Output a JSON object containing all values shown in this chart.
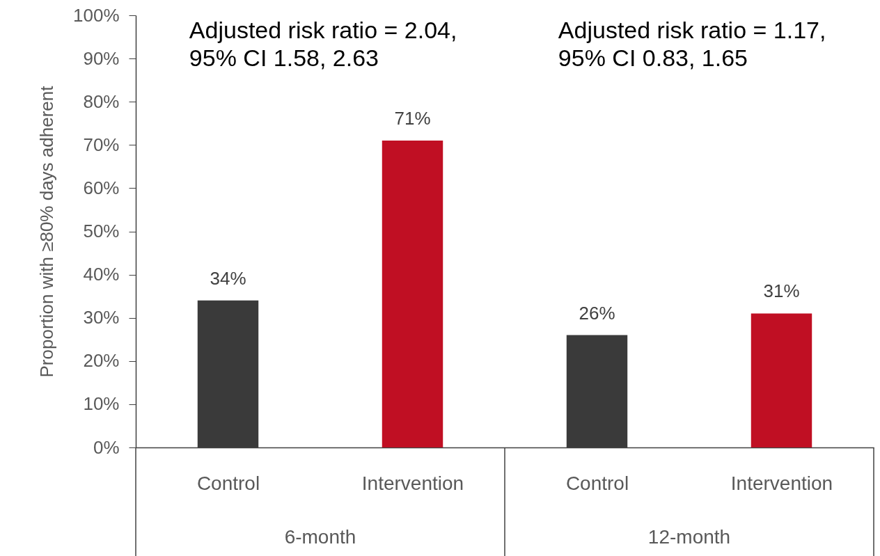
{
  "chart_data": {
    "type": "bar",
    "ylabel": "Proportion with ≥80% days adherent",
    "categories": [
      "Control",
      "Intervention",
      "Control",
      "Intervention"
    ],
    "values": [
      34,
      71,
      26,
      31
    ],
    "colors": [
      "#3a3a3a",
      "#c00f23",
      "#3a3a3a",
      "#c00f23"
    ],
    "data_labels": true,
    "value_labels": [
      "34%",
      "71%",
      "26%",
      "31%"
    ],
    "ylim": [
      0,
      100
    ],
    "yticks": [
      {
        "value": 0,
        "label": "0%"
      },
      {
        "value": 10,
        "label": "10%"
      },
      {
        "value": 20,
        "label": "20%"
      },
      {
        "value": 30,
        "label": "30%"
      },
      {
        "value": 40,
        "label": "40%"
      },
      {
        "value": 50,
        "label": "50%"
      },
      {
        "value": 60,
        "label": "60%"
      },
      {
        "value": 70,
        "label": "70%"
      },
      {
        "value": 80,
        "label": "80%"
      },
      {
        "value": 90,
        "label": "90%"
      },
      {
        "value": 100,
        "label": "100%"
      }
    ],
    "grid": false,
    "annotations": [
      "Adjusted risk ratio = 2.04,\n95% CI 1.58, 2.63",
      "Adjusted risk ratio = 1.17,\n95% CI 0.83, 1.65",
      "6-month",
      "12-month"
    ]
  }
}
